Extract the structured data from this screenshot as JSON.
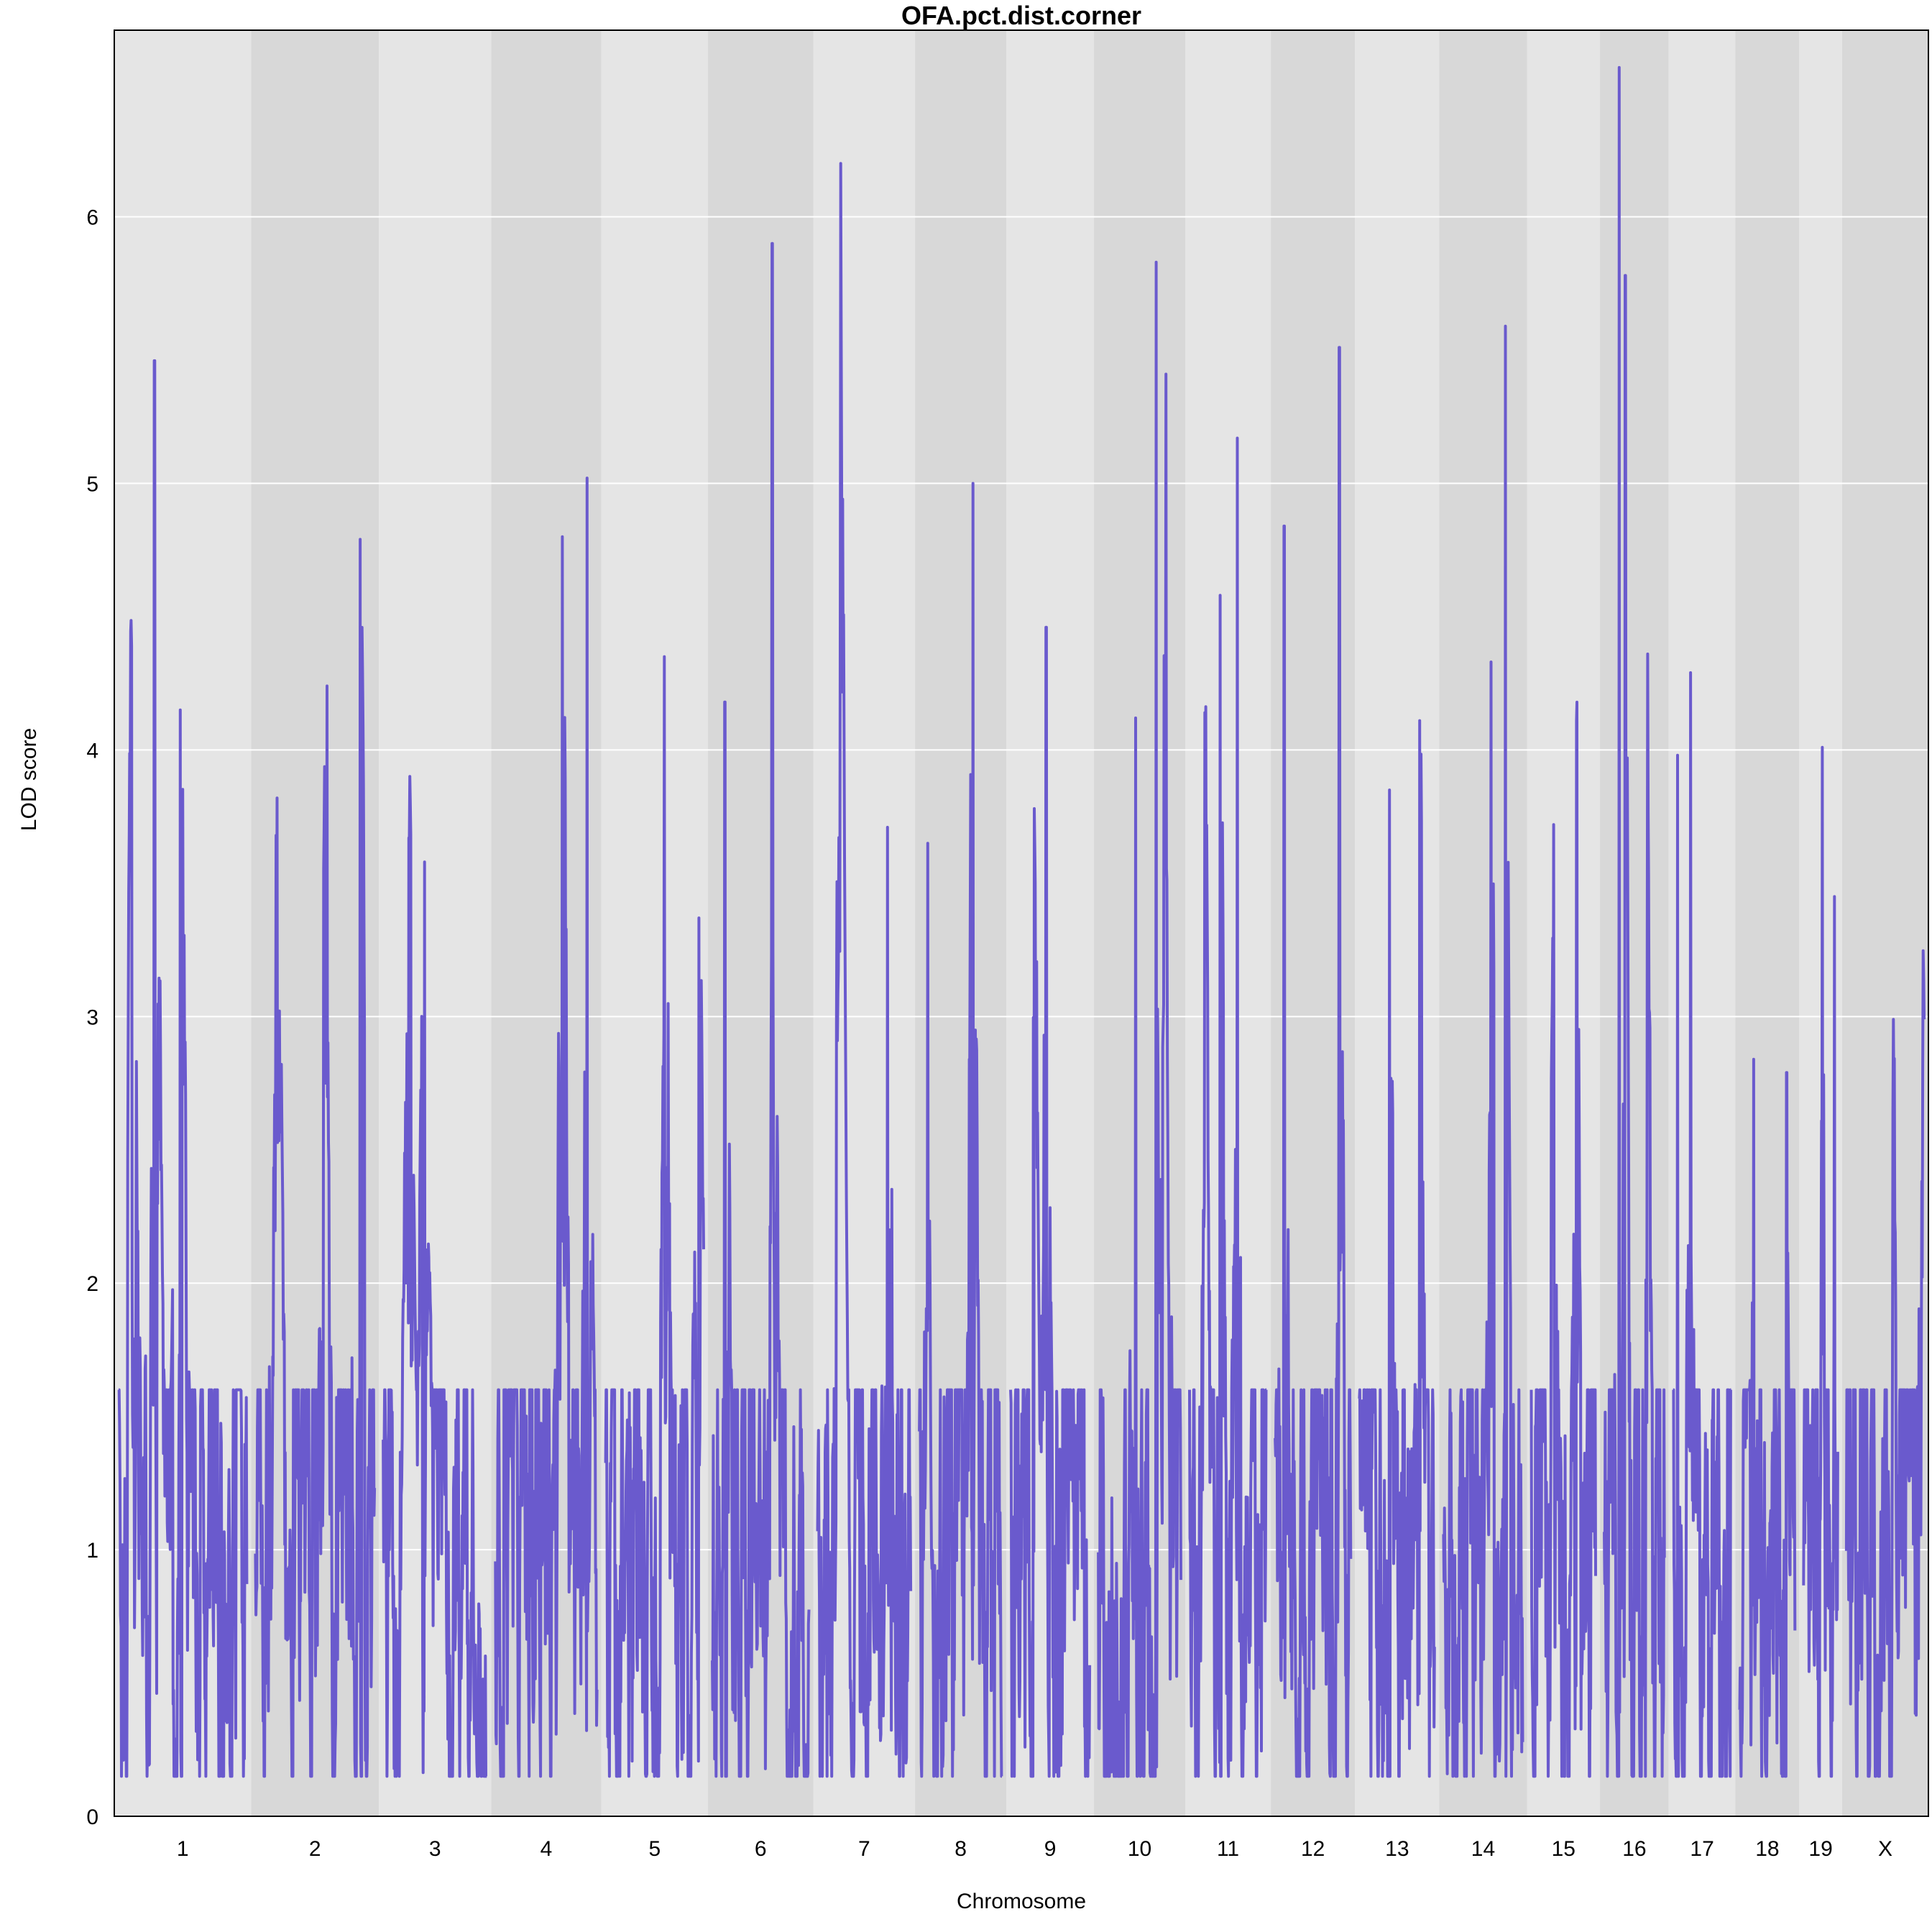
{
  "chart_data": {
    "type": "line",
    "title": "OFA.pct.dist.corner",
    "xlabel": "Chromosome",
    "ylabel": "LOD score",
    "ylim": [
      0,
      6.7
    ],
    "yticks": [
      0,
      1,
      2,
      3,
      4,
      5,
      6
    ],
    "grid": true,
    "legend": "none",
    "colors": {
      "line": "#6a5acd",
      "band_light": "#e5e5e5",
      "band_dark": "#d8d8d8",
      "gridline": "#ffffff",
      "frame": "#000000"
    },
    "chromosomes": [
      {
        "label": "1",
        "length": 195,
        "peaks": [
          [
            0.28,
            5.46
          ],
          [
            0.1,
            4.39
          ],
          [
            0.48,
            4.15
          ]
        ]
      },
      {
        "label": "2",
        "length": 182,
        "peaks": [
          [
            0.88,
            4.79
          ],
          [
            0.6,
            4.24
          ],
          [
            0.18,
            3.82
          ]
        ]
      },
      {
        "label": "3",
        "length": 160,
        "peaks": [
          [
            0.25,
            3.67
          ],
          [
            0.4,
            3.58
          ]
        ]
      },
      {
        "label": "4",
        "length": 157,
        "peaks": [
          [
            0.9,
            5.02
          ],
          [
            0.66,
            4.8
          ]
        ]
      },
      {
        "label": "5",
        "length": 152,
        "peaks": [
          [
            0.6,
            4.35
          ],
          [
            0.95,
            3.37
          ]
        ]
      },
      {
        "label": "6",
        "length": 150,
        "peaks": [
          [
            0.62,
            5.9
          ],
          [
            0.13,
            4.18
          ]
        ]
      },
      {
        "label": "7",
        "length": 145,
        "peaks": [
          [
            0.25,
            6.2
          ],
          [
            0.75,
            3.71
          ]
        ]
      },
      {
        "label": "8",
        "length": 130,
        "peaks": [
          [
            0.65,
            5.0
          ],
          [
            0.1,
            3.65
          ]
        ]
      },
      {
        "label": "9",
        "length": 125,
        "peaks": [
          [
            0.45,
            4.46
          ],
          [
            0.3,
            3.78
          ]
        ]
      },
      {
        "label": "10",
        "length": 130,
        "peaks": [
          [
            0.7,
            5.83
          ],
          [
            0.82,
            5.41
          ],
          [
            0.45,
            4.12
          ]
        ]
      },
      {
        "label": "11",
        "length": 122,
        "peaks": [
          [
            0.62,
            5.17
          ],
          [
            0.4,
            4.58
          ],
          [
            0.2,
            4.14
          ]
        ]
      },
      {
        "label": "12",
        "length": 120,
        "peaks": [
          [
            0.85,
            5.51
          ],
          [
            0.12,
            4.84
          ]
        ]
      },
      {
        "label": "13",
        "length": 120,
        "peaks": [
          [
            0.8,
            4.11
          ],
          [
            0.4,
            3.85
          ]
        ]
      },
      {
        "label": "14",
        "length": 125,
        "peaks": [
          [
            0.78,
            5.59
          ],
          [
            0.6,
            4.33
          ]
        ]
      },
      {
        "label": "15",
        "length": 104,
        "peaks": [
          [
            0.7,
            4.11
          ],
          [
            0.35,
            3.72
          ]
        ]
      },
      {
        "label": "16",
        "length": 98,
        "peaks": [
          [
            0.25,
            6.56
          ],
          [
            0.35,
            5.78
          ],
          [
            0.72,
            4.36
          ]
        ]
      },
      {
        "label": "17",
        "length": 95,
        "peaks": [
          [
            0.3,
            4.29
          ],
          [
            0.08,
            3.98
          ]
        ]
      },
      {
        "label": "18",
        "length": 91,
        "peaks": [
          [
            0.25,
            2.84
          ],
          [
            0.85,
            2.79
          ]
        ]
      },
      {
        "label": "19",
        "length": 61,
        "peaks": [
          [
            0.55,
            4.01
          ],
          [
            0.9,
            3.45
          ]
        ]
      },
      {
        "label": "X",
        "length": 123,
        "peaks": [
          [
            0.98,
            2.8
          ],
          [
            0.6,
            2.65
          ]
        ]
      }
    ]
  }
}
